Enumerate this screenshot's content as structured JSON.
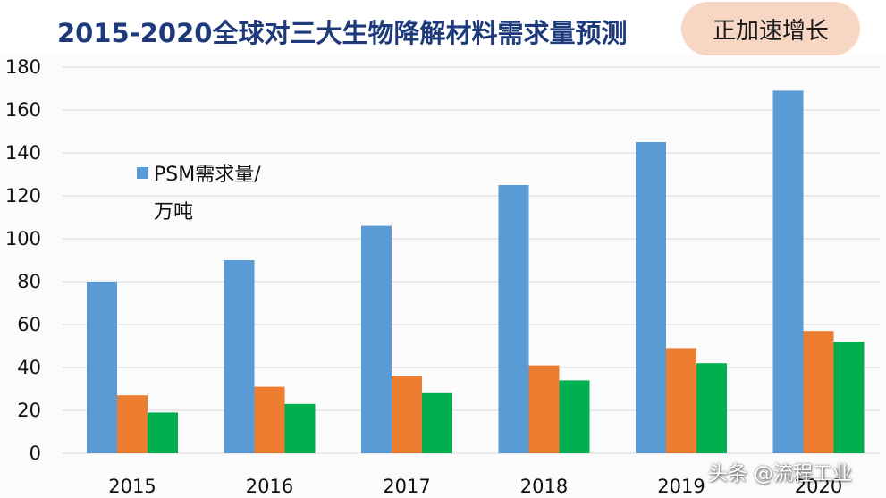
{
  "header": {
    "title": "2015-2020全球对三大生物降解材料需求量预测",
    "badge": "正加速增长"
  },
  "watermark": "头条 @流程工业",
  "colors": {
    "title": "#1f3a7a",
    "badge_bg": "#f7d7c4",
    "psm": "#5b9bd5",
    "series2": "#ed7d31",
    "series3": "#00b050",
    "grid": "#d9d9d9"
  },
  "chart_data": {
    "type": "bar",
    "categories": [
      "2015",
      "2016",
      "2017",
      "2018",
      "2019",
      "2020"
    ],
    "series": [
      {
        "name": "PSM需求量/万吨",
        "legend_lines": [
          "PSM需求量/",
          "万吨"
        ],
        "values": [
          80,
          90,
          106,
          125,
          145,
          169
        ]
      },
      {
        "values": [
          27,
          31,
          36,
          41,
          49,
          57
        ]
      },
      {
        "values": [
          19,
          23,
          28,
          34,
          42,
          52
        ]
      }
    ],
    "ylim": [
      0,
      180
    ],
    "yticks": [
      0,
      20,
      40,
      60,
      80,
      100,
      120,
      140,
      160,
      180
    ],
    "grid": true,
    "legend_position": "top-left"
  }
}
